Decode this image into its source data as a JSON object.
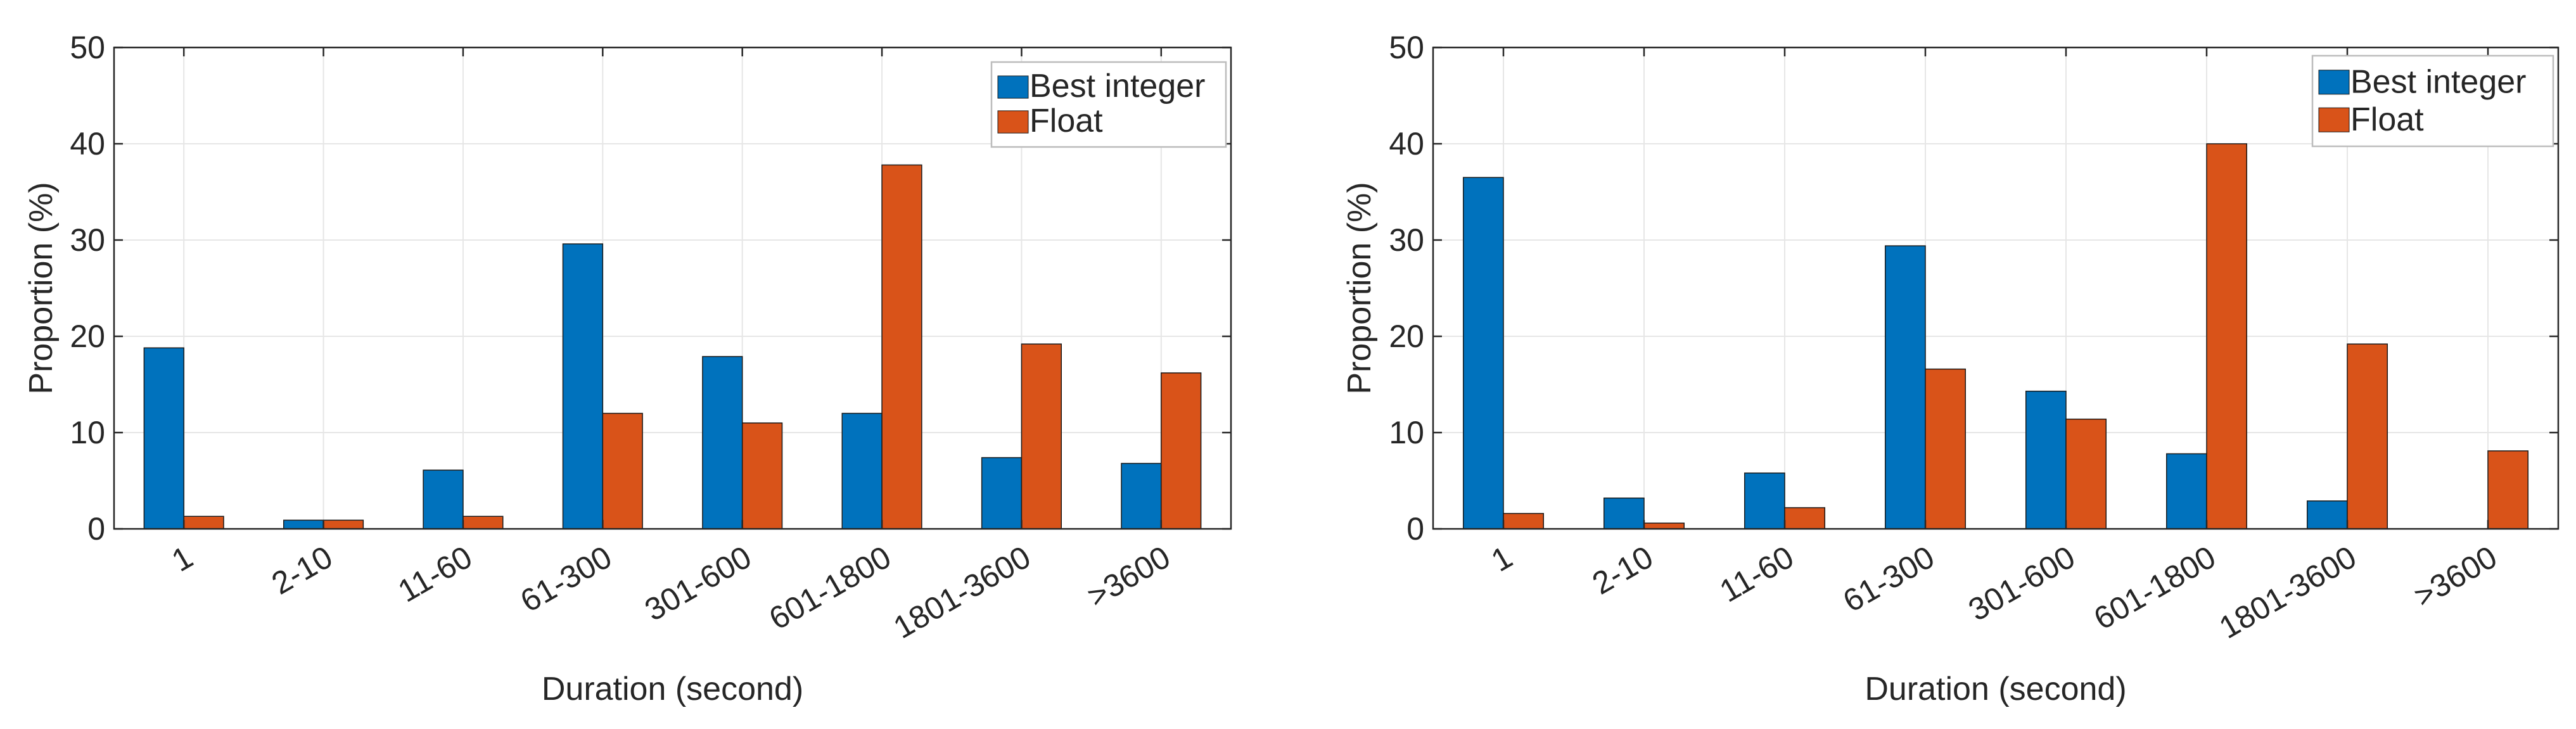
{
  "chart_data": [
    {
      "type": "bar",
      "title": "",
      "xlabel": "Duration (second)",
      "ylabel": "Proportion (%)",
      "ylim": [
        0,
        50
      ],
      "yticks": [
        0,
        10,
        20,
        30,
        40,
        50
      ],
      "grid": true,
      "legend_position": "top-right",
      "categories": [
        "1",
        "2-10",
        "11-60",
        "61-300",
        "301-600",
        "601-1800",
        "1801-3600",
        ">3600"
      ],
      "series": [
        {
          "name": "Best integer",
          "color": "#0072BD",
          "values": [
            18.8,
            0.9,
            6.1,
            29.6,
            17.9,
            12.0,
            7.4,
            6.8
          ]
        },
        {
          "name": "Float",
          "color": "#D95319",
          "values": [
            1.3,
            0.9,
            1.3,
            12.0,
            11.0,
            37.8,
            19.2,
            16.2
          ]
        }
      ]
    },
    {
      "type": "bar",
      "title": "",
      "xlabel": "Duration (second)",
      "ylabel": "Proportion (%)",
      "ylim": [
        0,
        50
      ],
      "yticks": [
        0,
        10,
        20,
        30,
        40,
        50
      ],
      "grid": true,
      "legend_position": "top-right",
      "categories": [
        "1",
        "2-10",
        "11-60",
        "61-300",
        "301-600",
        "601-1800",
        "1801-3600",
        ">3600"
      ],
      "series": [
        {
          "name": "Best integer",
          "color": "#0072BD",
          "values": [
            36.5,
            3.2,
            5.8,
            29.4,
            14.3,
            7.8,
            2.9,
            0
          ]
        },
        {
          "name": "Float",
          "color": "#D95319",
          "values": [
            1.6,
            0.6,
            2.2,
            16.6,
            11.4,
            40.0,
            19.2,
            8.1
          ]
        }
      ]
    }
  ]
}
